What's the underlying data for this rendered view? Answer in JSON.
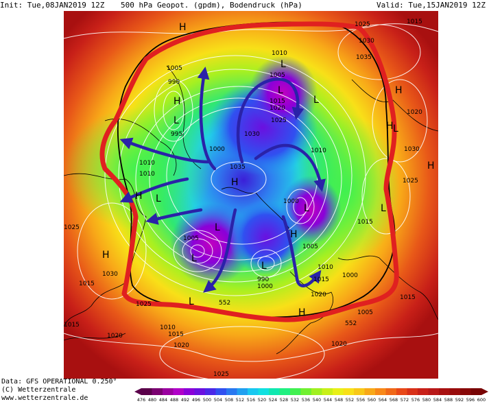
{
  "header": {
    "init": "Init: Tue,08JAN2019 12Z",
    "title": "500 hPa Geopot. (gpdm), Bodendruck (hPa)",
    "valid": "Valid: Tue,15JAN2019 12Z"
  },
  "footer": {
    "data": "Data: GFS OPERATIONAL 0.250°",
    "copyright": "(C) Wetterzentrale",
    "url": "www.wetterzentrale.de"
  },
  "legend": {
    "ticks": [
      "476",
      "480",
      "484",
      "488",
      "492",
      "496",
      "500",
      "504",
      "508",
      "512",
      "516",
      "520",
      "524",
      "528",
      "532",
      "536",
      "540",
      "544",
      "548",
      "552",
      "556",
      "560",
      "564",
      "568",
      "572",
      "576",
      "580",
      "584",
      "588",
      "592",
      "596",
      "600"
    ],
    "colors": [
      "#5a004a",
      "#7a0070",
      "#9a00a0",
      "#b000c8",
      "#8a00d8",
      "#6a10e0",
      "#4a28e8",
      "#3050f0",
      "#2878f0",
      "#20a0f0",
      "#18c8f0",
      "#10e0e0",
      "#10e8b0",
      "#20f080",
      "#40f050",
      "#70f030",
      "#a0f020",
      "#c8f018",
      "#e8f018",
      "#f8e018",
      "#f8c818",
      "#f8a818",
      "#f88818",
      "#f06818",
      "#e84818",
      "#d83018",
      "#c82018",
      "#b81818",
      "#a81010",
      "#980c0c",
      "#880808",
      "#780404"
    ]
  },
  "map_labels": {
    "highs": [
      "H",
      "H",
      "H",
      "H",
      "H",
      "H",
      "H",
      "H",
      "H",
      "H"
    ],
    "lows": [
      "L",
      "L",
      "L",
      "L",
      "L",
      "L",
      "L",
      "L",
      "L",
      "L",
      "L",
      "L"
    ],
    "isobars": [
      "1025",
      "1030",
      "1035",
      "1015",
      "1010",
      "1005",
      "990",
      "995",
      "1000",
      "1010",
      "1015",
      "1020",
      "1025",
      "1030",
      "1035",
      "1025",
      "1030",
      "1010",
      "1000",
      "990",
      "1005",
      "1000",
      "1005",
      "1010",
      "1015",
      "1020",
      "1025",
      "1020",
      "1015",
      "1010",
      "1020",
      "1025",
      "1020",
      "1015",
      "1030",
      "1025",
      "1015",
      "1005",
      "1000",
      "1015",
      "552",
      "552",
      "1020",
      "1015",
      "1010",
      "1005"
    ],
    "contour_552": "552"
  },
  "colors": {
    "annotation_red": "#e02020",
    "arrow_blue": "#2a22a8",
    "contour_white": "#ffffff",
    "land_black": "#000000"
  }
}
